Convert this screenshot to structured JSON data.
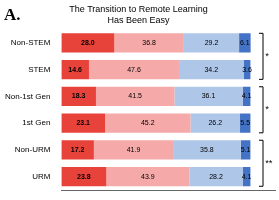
{
  "chart_data": {
    "type": "bar",
    "orientation": "horizontal",
    "stacked": true,
    "title": [
      "The Transition to Remote Learning",
      "Has Been Easy"
    ],
    "categories": [
      "Non-STEM",
      "STEM",
      "Non-1st Gen",
      "1st Gen",
      "Non-URM",
      "URM"
    ],
    "series": [
      {
        "color": "#e8433a",
        "values": [
          28.0,
          14.6,
          18.3,
          23.1,
          17.2,
          23.8
        ],
        "value_labels": [
          "28.0",
          "14.6",
          "18.3",
          "23.1",
          "17.2",
          "23.8"
        ]
      },
      {
        "color": "#f5a9a9",
        "values": [
          36.8,
          47.6,
          41.5,
          45.2,
          41.9,
          43.9
        ]
      },
      {
        "color": "#aec6e8",
        "values": [
          29.2,
          34.2,
          36.1,
          26.2,
          35.8,
          28.2
        ]
      },
      {
        "color": "#4472c4",
        "values": [
          6.1,
          3.6,
          4.1,
          5.5,
          5.1,
          4.1
        ]
      }
    ],
    "xlim": [
      0,
      113
    ],
    "grid": false,
    "tick_labels": "y",
    "data_labels": true,
    "annotations": [
      {
        "text": "A."
      },
      {
        "text": "*",
        "categories": [
          "Non-STEM",
          "STEM"
        ]
      },
      {
        "text": "*",
        "categories": [
          "Non-1st Gen",
          "1st Gen"
        ]
      },
      {
        "text": "**",
        "categories": [
          "Non-URM",
          "URM"
        ]
      }
    ]
  }
}
